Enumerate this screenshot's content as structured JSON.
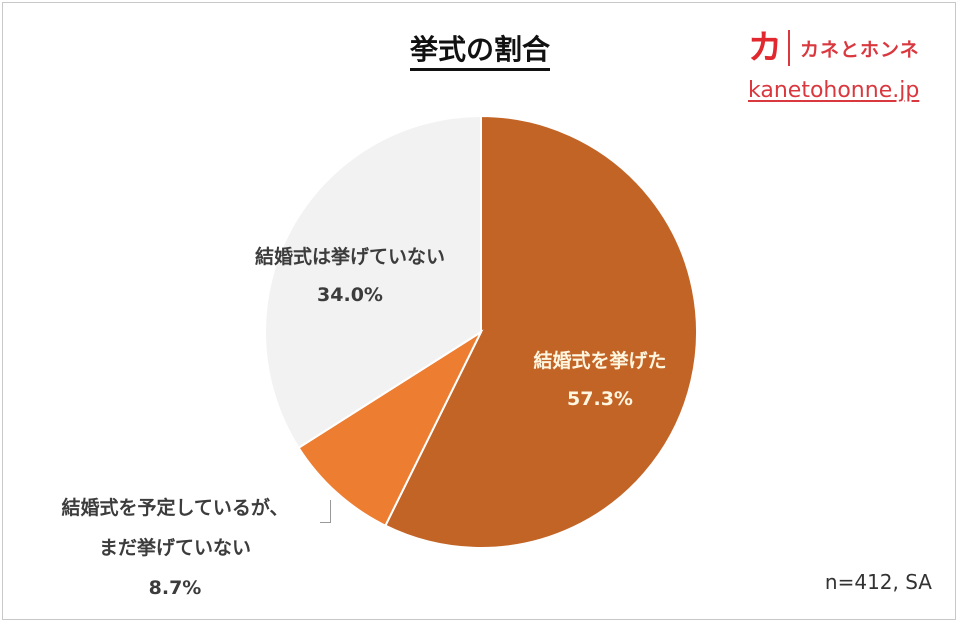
{
  "header": {
    "title": "挙式の割合",
    "logo_mark": "カ",
    "logo_name": "カネとホンネ",
    "site": "kanetohonne.jp"
  },
  "footer": {
    "note": "n=412, SA"
  },
  "labels": [
    {
      "line1": "結婚式を挙げた",
      "value": "57.3%"
    },
    {
      "line1": "結婚式を予定しているが、",
      "line2": "まだ挙げていない",
      "value": "8.7%"
    },
    {
      "line1": "結婚式は挙げていない",
      "value": "34.0%"
    }
  ],
  "colors": {
    "held": "#c36427",
    "planned": "#ed7d31",
    "not_held": "#f2f2f3",
    "brand": "#e0282e"
  },
  "chart_data": {
    "type": "pie",
    "title": "挙式の割合",
    "categories": [
      "結婚式を挙げた",
      "結婚式を予定しているが、まだ挙げていない",
      "結婚式は挙げていない"
    ],
    "values": [
      57.3,
      8.7,
      34.0
    ],
    "unit": "%",
    "start_angle": "12 o'clock",
    "direction": "clockwise",
    "colors": [
      "#c36427",
      "#ed7d31",
      "#f2f2f3"
    ],
    "annotation": "n=412, SA",
    "legend": "none (data labels)"
  }
}
